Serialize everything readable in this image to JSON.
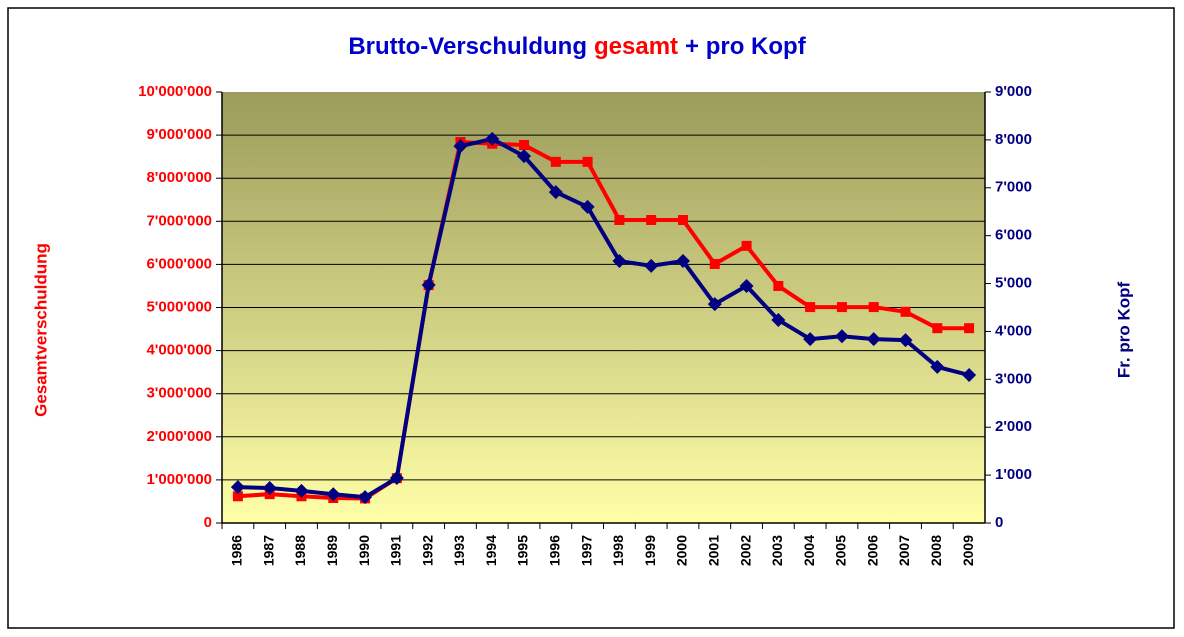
{
  "chart_data": {
    "type": "line",
    "title": [
      "Brutto-Verschuldung",
      "gesamt",
      "+ pro Kopf"
    ],
    "title_colors": [
      "#0000cc",
      "#ff0000",
      "#0000cc"
    ],
    "ylabel": "Gesamtverschuldung",
    "y2label": "Fr. pro Kopf",
    "categories": [
      "1986",
      "1987",
      "1988",
      "1989",
      "1990",
      "1991",
      "1992",
      "1993",
      "1994",
      "1995",
      "1996",
      "1997",
      "1998",
      "1999",
      "2000",
      "2001",
      "2002",
      "2003",
      "2004",
      "2005",
      "2006",
      "2007",
      "2008",
      "2009"
    ],
    "series": [
      {
        "name": "Gesamtverschuldung",
        "color": "#ff0000",
        "marker": "square",
        "values": [
          620000,
          670000,
          620000,
          580000,
          570000,
          1040000,
          5520000,
          8840000,
          8800000,
          8770000,
          8380000,
          8380000,
          7030000,
          7030000,
          7030000,
          6010000,
          6430000,
          5500000,
          5010000,
          5010000,
          5010000,
          4900000,
          4520000,
          4520000
        ]
      },
      {
        "name": "Fr. pro Kopf",
        "color": "#000080",
        "marker": "diamond",
        "axis": "y2",
        "values": [
          750,
          730,
          670,
          600,
          540,
          940,
          4970,
          7870,
          8020,
          7660,
          6910,
          6600,
          5470,
          5370,
          5470,
          4570,
          4950,
          4240,
          3840,
          3900,
          3840,
          3820,
          3260,
          3090
        ]
      }
    ],
    "ylim": [
      0,
      10000000
    ],
    "yticks": [
      0,
      {
        "value": 1000000,
        "label": "1'000'000"
      },
      {
        "value": 2000000,
        "label": "2'000'000"
      },
      {
        "value": 3000000,
        "label": "3'000'000"
      },
      {
        "value": 4000000,
        "label": "4'000'000"
      },
      {
        "value": 5000000,
        "label": "5'000'000"
      },
      {
        "value": 6000000,
        "label": "6'000'000"
      },
      {
        "value": 7000000,
        "label": "7'000'000"
      },
      {
        "value": 8000000,
        "label": "8'000'000"
      },
      {
        "value": 9000000,
        "label": "9'000'000"
      },
      {
        "value": 10000000,
        "label": "10'000'000"
      }
    ],
    "y2lim": [
      0,
      9000
    ],
    "y2ticks": [
      0,
      {
        "value": 1000,
        "label": "1'000"
      },
      {
        "value": 2000,
        "label": "2'000"
      },
      {
        "value": 3000,
        "label": "3'000"
      },
      {
        "value": 4000,
        "label": "4'000"
      },
      {
        "value": 5000,
        "label": "5'000"
      },
      {
        "value": 6000,
        "label": "6'000"
      },
      {
        "value": 7000,
        "label": "7'000"
      },
      {
        "value": 8000,
        "label": "8'000"
      },
      {
        "value": 9000,
        "label": "9'000"
      }
    ],
    "grid": true
  }
}
